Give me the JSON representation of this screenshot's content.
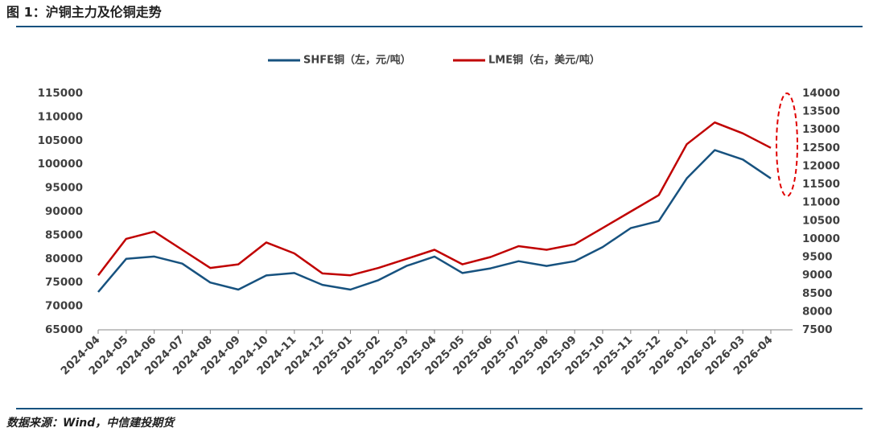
{
  "chart_data": {
    "type": "line",
    "title": "图 1：沪铜主力及伦铜走势",
    "source": "数据来源：Wind，中信建投期货",
    "categories": [
      "2024-04",
      "2024-05",
      "2024-06",
      "2024-07",
      "2024-08",
      "2024-09",
      "2024-10",
      "2024-11",
      "2024-12",
      "2025-01",
      "2025-02",
      "2025-03",
      "2025-04",
      "2025-05",
      "2025-06",
      "2025-07",
      "2025-08",
      "2025-09",
      "2025-10",
      "2025-11",
      "2025-12",
      "2026-01",
      "2026-02",
      "2026-03",
      "2026-04"
    ],
    "series": [
      {
        "name": "SHFE铜（左，元/吨）",
        "color": "#17527f",
        "axis": "y",
        "values": [
          73000,
          80000,
          80500,
          79000,
          75000,
          73500,
          76500,
          77000,
          74500,
          73500,
          75500,
          78500,
          80500,
          77000,
          78000,
          79500,
          78500,
          79500,
          82500,
          86500,
          88000,
          97000,
          103000,
          101000,
          97000
        ]
      },
      {
        "name": "LME铜（右，美元/吨）",
        "color": "#c00000",
        "axis": "y2",
        "values": [
          9000,
          10000,
          10200,
          9700,
          9200,
          9300,
          9900,
          9600,
          9050,
          9000,
          9200,
          9450,
          9700,
          9300,
          9500,
          9800,
          9700,
          9850,
          10300,
          10750,
          11200,
          12600,
          13200,
          12900,
          12500
        ]
      }
    ],
    "ylim": [
      65000,
      115000
    ],
    "yticks": [
      65000,
      70000,
      75000,
      80000,
      85000,
      90000,
      95000,
      100000,
      105000,
      110000,
      115000
    ],
    "y2lim": [
      7500,
      14000
    ],
    "y2ticks": [
      7500,
      8000,
      8500,
      9000,
      9500,
      10000,
      10500,
      11000,
      11500,
      12000,
      12500,
      13000,
      13500,
      14000
    ],
    "grid": false,
    "legend": "top"
  }
}
